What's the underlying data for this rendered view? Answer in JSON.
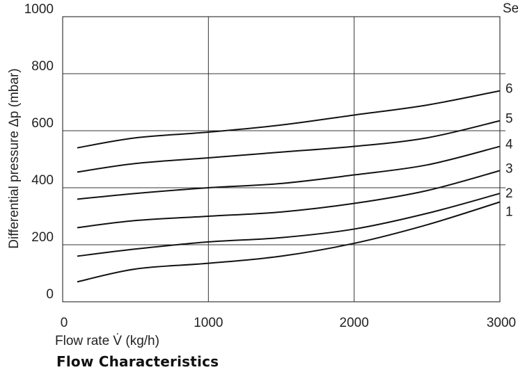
{
  "caption": "Flow Characteristics",
  "chart_data": {
    "type": "line",
    "title": "",
    "xlabel": "Flow rate V̇ (kg/h)",
    "ylabel": "Differential pressure Δp (mbar)",
    "corner_label": "Se",
    "xlim": [
      0,
      3000
    ],
    "ylim": [
      0,
      1000
    ],
    "xticks": [
      "0",
      "1000",
      "2000",
      "3000"
    ],
    "yticks": [
      "0",
      "200",
      "400",
      "600",
      "800",
      "1000"
    ],
    "x_tick_values": [
      0,
      1000,
      2000,
      3000
    ],
    "y_tick_values": [
      0,
      200,
      400,
      600,
      800,
      1000
    ],
    "grid": true,
    "x": [
      100,
      500,
      1000,
      1500,
      2000,
      2500,
      3000
    ],
    "series": [
      {
        "name": "1",
        "values": [
          70,
          115,
          135,
          160,
          205,
          270,
          350
        ]
      },
      {
        "name": "2",
        "values": [
          160,
          185,
          210,
          225,
          255,
          310,
          380
        ]
      },
      {
        "name": "3",
        "values": [
          260,
          285,
          300,
          315,
          345,
          390,
          460
        ]
      },
      {
        "name": "4",
        "values": [
          360,
          380,
          400,
          415,
          445,
          480,
          545
        ]
      },
      {
        "name": "5",
        "values": [
          455,
          485,
          505,
          525,
          545,
          575,
          635
        ]
      },
      {
        "name": "6",
        "values": [
          540,
          575,
          595,
          620,
          655,
          690,
          740
        ]
      }
    ]
  }
}
